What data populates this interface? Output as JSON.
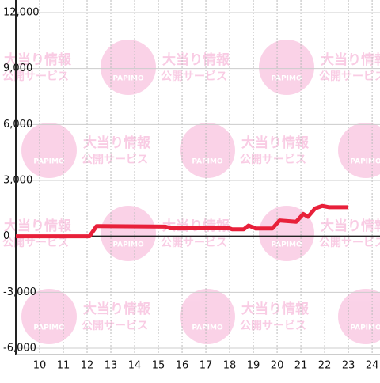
{
  "chart_data": {
    "type": "line",
    "x": [
      9,
      12.1,
      12.4,
      15.3,
      15.5,
      18,
      18.1,
      18.6,
      18.8,
      19.1,
      19.8,
      20.1,
      20.8,
      21.1,
      21.3,
      21.6,
      21.9,
      22.2,
      23
    ],
    "series": [
      {
        "color": "#e8203a",
        "values": [
          0,
          0,
          550,
          520,
          430,
          430,
          380,
          380,
          580,
          420,
          420,
          850,
          780,
          1200,
          1050,
          1500,
          1630,
          1560,
          1560
        ]
      }
    ],
    "xlim": [
      9,
      24.33
    ],
    "xticks": [
      10,
      11,
      12,
      13,
      14,
      15,
      16,
      17,
      18,
      19,
      20,
      21,
      22,
      23,
      24
    ],
    "ylim": [
      -6000,
      12000
    ],
    "yticks": [
      {
        "value": -6000,
        "label": "-6,000"
      },
      {
        "value": -3000,
        "label": "-3,000"
      },
      0,
      {
        "value": 3000,
        "label": "3,000"
      },
      {
        "value": 6000,
        "label": "6,000"
      },
      {
        "value": 9000,
        "label": "9,000"
      },
      {
        "value": 12000,
        "label": "12,000"
      }
    ],
    "grid": true
  },
  "watermark": {
    "logo": "PAPIMO",
    "line1": "大当り情報",
    "line2": "公開サービス"
  }
}
